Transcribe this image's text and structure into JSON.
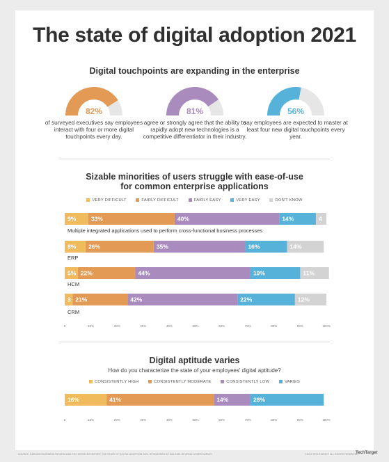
{
  "title": "The state of digital adoption 2021",
  "touchpoints": {
    "heading": "Digital touchpoints are expanding in the enterprise",
    "gauges": [
      {
        "value": 82,
        "label": "82%",
        "color": "#e39a55",
        "text": "of surveyed executives say employees interact with four or more digital touchpoints every day."
      },
      {
        "value": 81,
        "label": "81%",
        "color": "#a98bbd",
        "text": "agree or strongly agree that the ability to rapidly adopt new technologies is a competitive differentiator in their industry."
      },
      {
        "value": 56,
        "label": "56%",
        "color": "#56b2d9",
        "text": "say employees are expected to master at least four new digital touchpoints every year."
      }
    ]
  },
  "ease_of_use": {
    "heading_line1": "Sizable minorities of users struggle with ease-of-use",
    "heading_line2": "for common enterprise applications",
    "legend": [
      "VERY DIFFICULT",
      "FAIRLY DIFFICULT",
      "FAIRLY EASY",
      "VERY EASY",
      "DON'T KNOW"
    ]
  },
  "aptitude": {
    "heading": "Digital aptitude varies",
    "question": "How do you characterize the state of your employees' digital aptitude?",
    "legend": [
      "CONSISTENTLY HIGH",
      "CONSISTENTLY MODERATE",
      "CONSISTENTLY LOW",
      "VARIES"
    ]
  },
  "colors": {
    "very_difficult": "#f0bb5c",
    "fairly_difficult": "#e39a55",
    "fairly_easy": "#a98bbd",
    "very_easy": "#56b2d9",
    "dont_know": "#d3d3d3"
  },
  "chart_data": [
    {
      "type": "bar",
      "orientation": "horizontal",
      "stacked": true,
      "categories": [
        "Multiple integrated applications used to perform cross-functional business processes",
        "ERP",
        "HCM",
        "CRM"
      ],
      "series": [
        {
          "name": "VERY DIFFICULT",
          "values": [
            9,
            8,
            5,
            3
          ],
          "labels": [
            "9%",
            "8%",
            "5%",
            "3"
          ]
        },
        {
          "name": "FAIRLY DIFFICULT",
          "values": [
            33,
            26,
            22,
            21
          ],
          "labels": [
            "33%",
            "26%",
            "22%",
            "21%"
          ]
        },
        {
          "name": "FAIRLY EASY",
          "values": [
            40,
            35,
            44,
            42
          ],
          "labels": [
            "40%",
            "35%",
            "44%",
            "42%"
          ]
        },
        {
          "name": "VERY EASY",
          "values": [
            14,
            16,
            19,
            22
          ],
          "labels": [
            "14%",
            "16%",
            "19%",
            "22%"
          ]
        },
        {
          "name": "DON'T KNOW",
          "values": [
            4,
            14,
            11,
            12
          ],
          "labels": [
            "4",
            "14%",
            "11%",
            "12%"
          ]
        }
      ],
      "xlim": [
        0,
        100
      ],
      "xticks": [
        "0",
        "10%",
        "20%",
        "30%",
        "40%",
        "50%",
        "60%",
        "70%",
        "80%",
        "90%",
        "100%"
      ],
      "legend_position": "top"
    },
    {
      "type": "bar",
      "orientation": "horizontal",
      "stacked": true,
      "categories": [
        ""
      ],
      "series": [
        {
          "name": "CONSISTENTLY HIGH",
          "values": [
            16
          ],
          "labels": [
            "16%"
          ]
        },
        {
          "name": "CONSISTENTLY MODERATE",
          "values": [
            41
          ],
          "labels": [
            "41%"
          ]
        },
        {
          "name": "CONSISTENTLY LOW",
          "values": [
            14
          ],
          "labels": [
            "14%"
          ]
        },
        {
          "name": "VARIES",
          "values": [
            28
          ],
          "labels": [
            "28%"
          ]
        }
      ],
      "xlim": [
        0,
        100
      ],
      "xticks": [
        "0",
        "10%",
        "20%",
        "30%",
        "40%",
        "50%",
        "60%",
        "70%",
        "80%",
        "90%",
        "100%"
      ],
      "legend_position": "top"
    }
  ],
  "footer": {
    "source": "SOURCE: HARVARD BUSINESS REVIEW ANALYTIC SERVICES REPORT: THE STATE OF DIGITAL ADOPTION 2021, SPONSORED BY WALKME; SEVERAL USERS SURVEY",
    "copyright": "©2021 TECHTARGET. ALL RIGHTS RESERVED",
    "brand": "TechTarget"
  }
}
